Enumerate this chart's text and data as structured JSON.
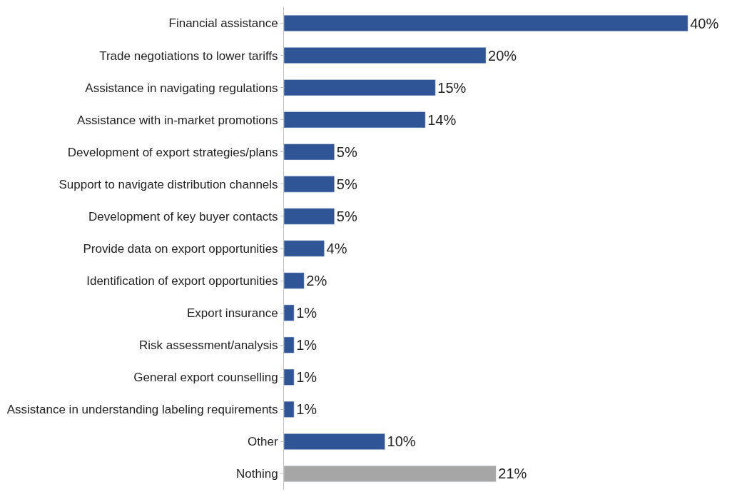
{
  "chart_data": {
    "type": "bar",
    "orientation": "horizontal",
    "categories": [
      "Financial assistance",
      "Trade negotiations to lower tariffs",
      "Assistance in navigating regulations",
      "Assistance with in-market promotions",
      "Development of export strategies/plans",
      "Support to navigate distribution channels",
      "Development of key buyer contacts",
      "Provide data on export opportunities",
      "Identification of export opportunities",
      "Export insurance",
      "Risk assessment/analysis",
      "General export counselling",
      "Assistance in understanding labeling requirements",
      "Other",
      "Nothing"
    ],
    "values": [
      40,
      20,
      15,
      14,
      5,
      5,
      5,
      4,
      2,
      1,
      1,
      1,
      1,
      10,
      21
    ],
    "value_labels": [
      "40%",
      "20%",
      "15%",
      "14%",
      "5%",
      "5%",
      "5%",
      "4%",
      "2%",
      "1%",
      "1%",
      "1%",
      "1%",
      "10%",
      "21%"
    ],
    "colors": [
      "#2f5597",
      "#2f5597",
      "#2f5597",
      "#2f5597",
      "#2f5597",
      "#2f5597",
      "#2f5597",
      "#2f5597",
      "#2f5597",
      "#2f5597",
      "#2f5597",
      "#2f5597",
      "#2f5597",
      "#2f5597",
      "#a6a6a6"
    ],
    "tick_labels": "y",
    "legend": false
  }
}
